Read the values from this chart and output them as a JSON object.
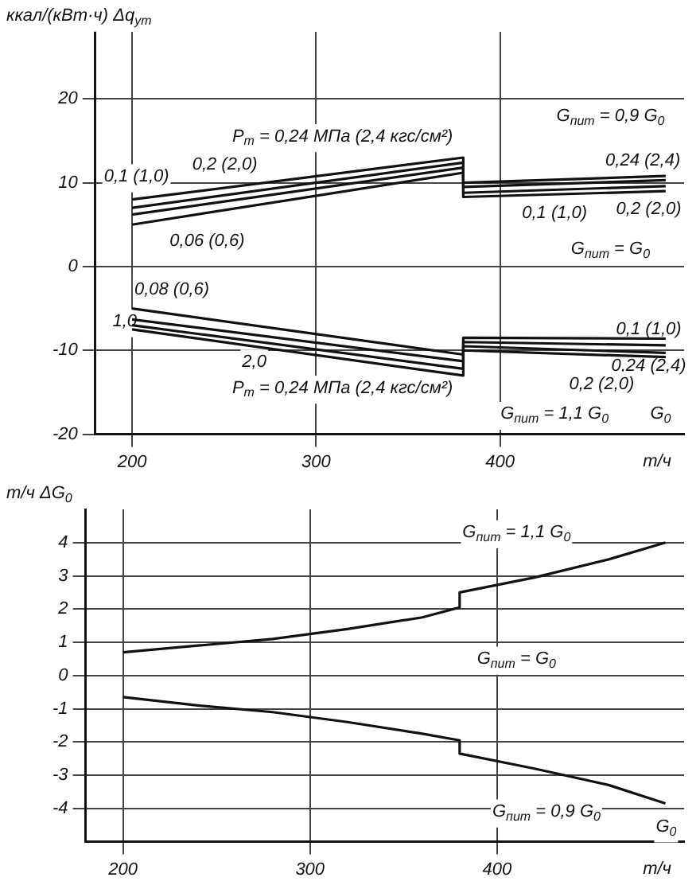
{
  "chart_data": [
    {
      "type": "line",
      "ylabel": "ккал/(кВт·ч) Δq$_{ут}$",
      "xlabel": "т/ч",
      "xlim": [
        180,
        500
      ],
      "xticks": [
        200,
        300,
        400
      ],
      "ylim": [
        -20,
        28
      ],
      "yticks": [
        -20,
        -10,
        0,
        10,
        20
      ],
      "grid": true,
      "x": [
        200,
        380,
        380,
        490
      ],
      "series": [
        {
          "color": "#111111",
          "values": [
            5.0,
            11.2,
            8.3,
            9.0
          ]
        },
        {
          "color": "#111111",
          "values": [
            6.2,
            11.8,
            8.8,
            9.6
          ]
        },
        {
          "color": "#111111",
          "values": [
            7.0,
            12.4,
            9.5,
            10.3
          ]
        },
        {
          "color": "#111111",
          "values": [
            8.0,
            13.0,
            10.0,
            10.8
          ]
        },
        {
          "color": "#111111",
          "values": [
            -5.0,
            -10.5,
            -9.0,
            -9.4
          ]
        },
        {
          "color": "#111111",
          "values": [
            -6.3,
            -11.3,
            -8.5,
            -8.6
          ]
        },
        {
          "color": "#111111",
          "values": [
            -7.0,
            -12.2,
            -10.0,
            -10.8
          ]
        },
        {
          "color": "#111111",
          "values": [
            -7.5,
            -13.0,
            -9.5,
            -10.3
          ]
        }
      ],
      "annotations": [
        "P$_{т}$ = 0,24 МПа (2,4 кгс/см²)",
        "0,2 (2,0)",
        "0,1 (1,0)",
        "0,06 (0,6)",
        "G$_{пит}$ = 0,9 G$_{0}$",
        "0,24 (2,4)",
        "0,1 (1,0)",
        "0,2 (2,0)",
        "G$_{пит}$ = G$_{0}$",
        "0,08 (0,6)",
        "1,0",
        "2,0",
        "P$_{т}$ = 0,24 МПа (2,4 кгс/см²)",
        "0,1 (1,0)",
        "0,24 (2,4)",
        "0,2 (2,0)",
        "G$_{пит}$ = 1,1 G$_{0}$",
        "G$_{0}$"
      ]
    },
    {
      "type": "line",
      "ylabel": "т/ч ΔG$_{0}$",
      "xlabel": "т/ч",
      "xlim": [
        180,
        500
      ],
      "xticks": [
        200,
        300,
        400
      ],
      "ylim": [
        -5,
        5
      ],
      "yticks": [
        -4,
        -3,
        -2,
        -1,
        0,
        1,
        2,
        3,
        4
      ],
      "grid": true,
      "x": [
        200,
        240,
        280,
        320,
        360,
        380,
        380,
        420,
        460,
        490
      ],
      "series": [
        {
          "color": "#111111",
          "values": [
            0.7,
            0.9,
            1.1,
            1.4,
            1.75,
            2.05,
            2.5,
            2.95,
            3.5,
            4.0
          ]
        },
        {
          "color": "#111111",
          "values": [
            -0.65,
            -0.9,
            -1.1,
            -1.4,
            -1.75,
            -1.95,
            -2.35,
            -2.8,
            -3.3,
            -3.85
          ]
        }
      ],
      "annotations": [
        "G$_{пит}$ = 1,1 G$_{0}$",
        "G$_{пит}$ = G$_{0}$",
        "G$_{пит}$ = 0,9 G$_{0}$",
        "G$_{0}$"
      ]
    }
  ]
}
